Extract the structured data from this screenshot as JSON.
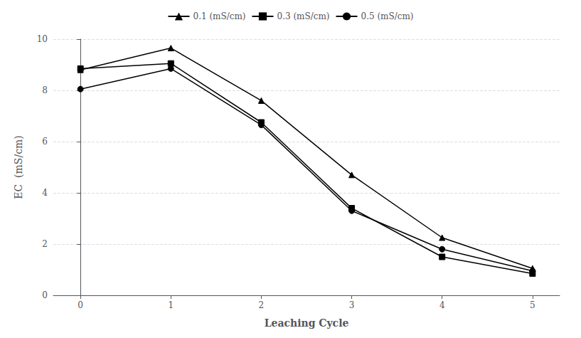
{
  "chart_data": {
    "type": "line",
    "x": [
      0,
      1,
      2,
      3,
      4,
      5
    ],
    "series": [
      {
        "name": "0.1 (mS/cm)",
        "values": [
          8.8,
          9.65,
          7.6,
          4.7,
          2.25,
          1.05
        ],
        "marker": "triangle",
        "color": "#000000",
        "line_style": "solid"
      },
      {
        "name": "0.3 (mS/cm)",
        "values": [
          8.85,
          9.05,
          6.75,
          3.4,
          1.5,
          0.85
        ],
        "marker": "square",
        "color": "#000000",
        "line_style": "solid"
      },
      {
        "name": "0.5 (mS/cm)",
        "values": [
          8.05,
          8.85,
          6.65,
          3.3,
          1.8,
          0.95
        ],
        "marker": "circle",
        "color": "#000000",
        "line_style": "solid"
      }
    ],
    "x_label": "Leaching Cycle",
    "y_label": "EC  (mS/cm)",
    "xlim": [
      -0.3,
      5.3
    ],
    "xticks": [
      0,
      1,
      2,
      3,
      4,
      5
    ],
    "ylim": [
      0,
      10
    ],
    "yticks": [
      0,
      2,
      4,
      6,
      8,
      10
    ],
    "grid": true,
    "legend": "top"
  }
}
